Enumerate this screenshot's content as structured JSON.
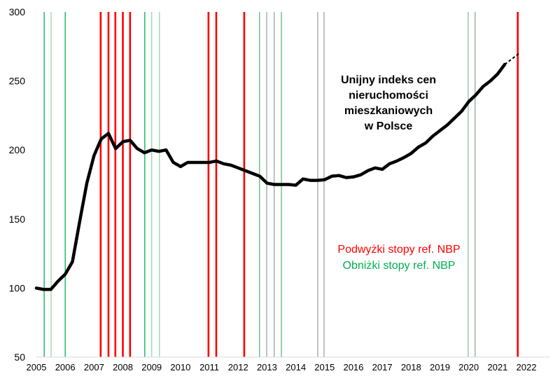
{
  "chart_data": {
    "type": "line",
    "title": "",
    "xlabel": "",
    "ylabel": "",
    "xlim": [
      2005,
      2022
    ],
    "ylim": [
      50,
      300
    ],
    "xticks": [
      "2005",
      "2006",
      "2007",
      "2008",
      "2009",
      "2010",
      "2011",
      "2012",
      "2013",
      "2014",
      "2015",
      "2016",
      "2017",
      "2018",
      "2019",
      "2020",
      "2021",
      "2022"
    ],
    "yticks": [
      "50",
      "100",
      "150",
      "200",
      "250",
      "300"
    ],
    "grid": false,
    "series": [
      {
        "name": "Unijny indeks cen nieruchomości mieszkaniowych w Polsce",
        "color": "#000000",
        "x_start": 2005,
        "x_step": 0.25,
        "values": [
          100,
          99,
          99,
          105,
          110,
          119,
          148,
          176,
          196,
          208,
          212,
          201,
          206,
          207,
          201,
          198,
          200,
          199,
          200,
          191,
          188,
          191,
          191,
          191,
          191,
          192,
          190,
          189,
          187,
          185,
          183,
          181,
          176,
          175,
          175,
          175,
          174.5,
          179,
          178,
          178,
          178.5,
          181,
          181.5,
          180,
          180.5,
          182,
          185,
          187,
          186,
          190,
          192,
          194.5,
          197.5,
          202,
          205,
          210,
          214,
          218,
          223,
          228,
          235,
          240,
          246,
          250,
          255,
          262
        ],
        "forecast": {
          "x": [
            2021.25,
            2021.75
          ],
          "values": [
            262,
            270
          ],
          "style": "dashed"
        }
      }
    ],
    "rate_hikes": {
      "label": "Podwyżki stopy ref. NBP",
      "color": "#ff0000",
      "dates": [
        2007.23,
        2007.5,
        2007.74,
        2008.0,
        2008.25,
        2010.97,
        2011.24,
        2012.21,
        2021.7
      ]
    },
    "rate_cuts": {
      "label": "Obniżki stopy ref. NBP",
      "color": "#00b050",
      "dates": [
        2005.27,
        2005.51,
        2006.0,
        2008.76,
        2009.0,
        2009.27,
        2012.74,
        2012.99,
        2013.25,
        2013.5,
        2014.76,
        2014.98,
        2019.98,
        2020.22
      ],
      "colors": [
        "#00b050",
        "#8fd9a8",
        "#00b050",
        "#00b050",
        "#8fd9a8",
        "#8fd9a8",
        "#5cb87a",
        "#9aa59e",
        "#9aa59e",
        "#5cb87a",
        "#9aa59e",
        "#9aa59e",
        "#8fbf9f",
        "#8fa89a"
      ]
    },
    "annotation": [
      "Unijny indeks cen",
      "nieruchomości",
      "mieszkaniowych",
      "w Polsce"
    ]
  }
}
